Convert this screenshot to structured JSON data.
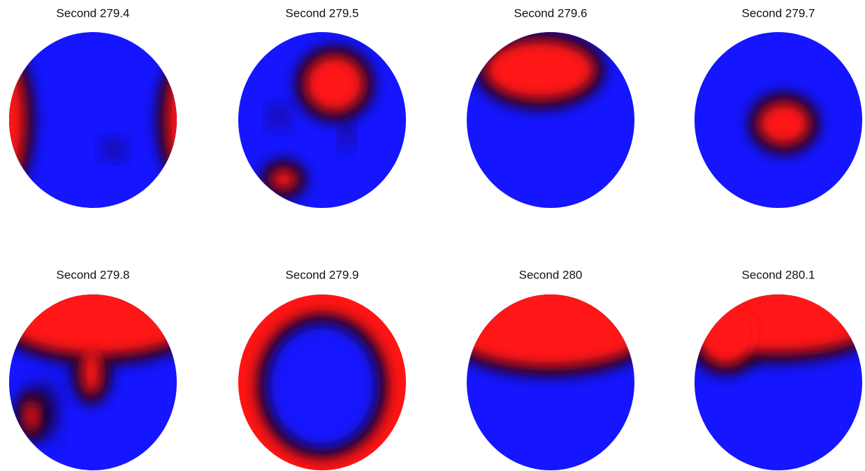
{
  "panels": [
    {
      "title": "Second 279.4"
    },
    {
      "title": "Second 279.5"
    },
    {
      "title": "Second 279.6"
    },
    {
      "title": "Second 279.7"
    },
    {
      "title": "Second 279.8"
    },
    {
      "title": "Second 279.9"
    },
    {
      "title": "Second 280"
    },
    {
      "title": "Second 280.1"
    }
  ]
}
